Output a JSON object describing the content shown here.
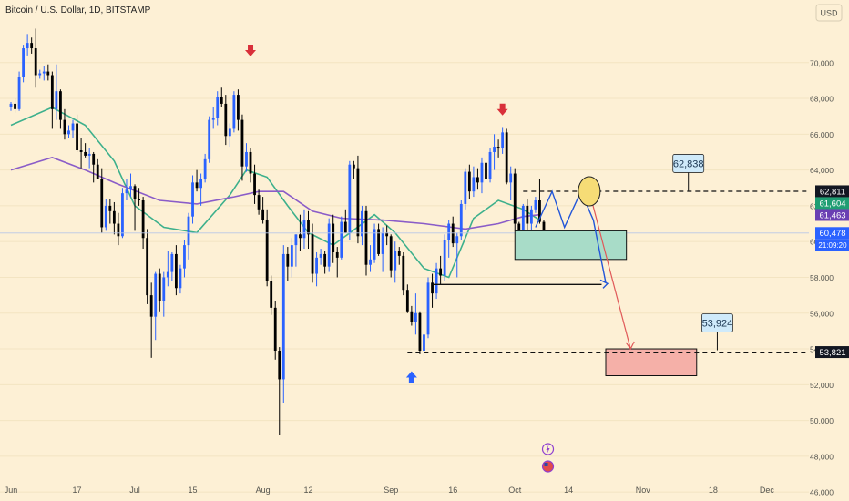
{
  "chart_data": {
    "type": "candlestick",
    "title": "Bitcoin / U.S. Dollar, 1D, BITSTAMP",
    "currency": "USD",
    "ylim": [
      45500,
      73500
    ],
    "y_ticks": [
      46000,
      48000,
      50000,
      52000,
      54000,
      56000,
      58000,
      60000,
      62000,
      64000,
      66000,
      68000,
      70000
    ],
    "y_tick_labels": [
      "46,000",
      "48,000",
      "50,000",
      "52,000",
      "54,000",
      "56,000",
      "58,000",
      "60,000",
      "62,000",
      "64,000",
      "66,000",
      "68,000",
      "70,000"
    ],
    "x_start_date": "2024-06-01",
    "x_end_date": "2024-12-05",
    "x_ticks": [
      {
        "date": "2024-06-01",
        "label": "Jun"
      },
      {
        "date": "2024-06-17",
        "label": "17"
      },
      {
        "date": "2024-07-01",
        "label": "Jul"
      },
      {
        "date": "2024-07-15",
        "label": "15"
      },
      {
        "date": "2024-08-01",
        "label": "Aug"
      },
      {
        "date": "2024-08-12",
        "label": "12"
      },
      {
        "date": "2024-09-01",
        "label": "Sep"
      },
      {
        "date": "2024-09-16",
        "label": "16"
      },
      {
        "date": "2024-10-01",
        "label": "Oct"
      },
      {
        "date": "2024-10-14",
        "label": "14"
      },
      {
        "date": "2024-11-01",
        "label": "Nov"
      },
      {
        "date": "2024-11-18",
        "label": "18"
      },
      {
        "date": "2024-12-01",
        "label": "Dec"
      }
    ],
    "ohlc_start_date": "2024-06-01",
    "ohlc": [
      [
        67500,
        67800,
        67300,
        67700
      ],
      [
        67700,
        68000,
        67200,
        67400
      ],
      [
        67400,
        69500,
        67300,
        69200
      ],
      [
        69200,
        71000,
        68900,
        70800
      ],
      [
        70800,
        71600,
        70400,
        71100
      ],
      [
        71100,
        71400,
        70500,
        70800
      ],
      [
        70800,
        71900,
        68600,
        69300
      ],
      [
        69300,
        69600,
        69100,
        69400
      ],
      [
        69400,
        69800,
        69000,
        69500
      ],
      [
        69500,
        69900,
        69000,
        69300
      ],
      [
        69300,
        69500,
        66300,
        67400
      ],
      [
        67400,
        69900,
        66800,
        68400
      ],
      [
        68400,
        68500,
        66300,
        66800
      ],
      [
        66800,
        67400,
        65700,
        66000
      ],
      [
        66000,
        66500,
        65800,
        66200
      ],
      [
        66200,
        66800,
        65800,
        66600
      ],
      [
        66600,
        67100,
        65000,
        65100
      ],
      [
        65100,
        65800,
        64100,
        65000
      ],
      [
        65000,
        65500,
        64700,
        64800
      ],
      [
        64800,
        65200,
        64100,
        64900
      ],
      [
        64900,
        65000,
        63300,
        64300
      ],
      [
        64300,
        64600,
        63500,
        63500
      ],
      [
        63500,
        64100,
        60500,
        60800
      ],
      [
        60800,
        62400,
        60600,
        62000
      ],
      [
        62000,
        62400,
        61000,
        61700
      ],
      [
        61700,
        62200,
        60400,
        61000
      ],
      [
        61000,
        61600,
        59800,
        60300
      ],
      [
        60300,
        63000,
        60200,
        62700
      ],
      [
        62700,
        63500,
        62300,
        62900
      ],
      [
        62900,
        63800,
        62500,
        63100
      ],
      [
        63100,
        63200,
        60600,
        62400
      ],
      [
        62400,
        63000,
        62000,
        62300
      ],
      [
        62300,
        62500,
        59600,
        60200
      ],
      [
        60200,
        60700,
        56500,
        57000
      ],
      [
        57000,
        57700,
        53500,
        55800
      ],
      [
        55800,
        58300,
        54500,
        58200
      ],
      [
        58200,
        58500,
        56100,
        56700
      ],
      [
        56700,
        58300,
        55800,
        58000
      ],
      [
        58000,
        59500,
        57500,
        58300
      ],
      [
        58300,
        59400,
        57800,
        59300
      ],
      [
        59300,
        59800,
        57000,
        57400
      ],
      [
        57400,
        58700,
        57100,
        58500
      ],
      [
        58500,
        60100,
        58000,
        59800
      ],
      [
        59800,
        61600,
        59000,
        61400
      ],
      [
        61400,
        63700,
        61000,
        63300
      ],
      [
        63300,
        64000,
        62800,
        63000
      ],
      [
        63000,
        63800,
        62000,
        63500
      ],
      [
        63500,
        64900,
        63300,
        64600
      ],
      [
        64600,
        67000,
        64400,
        66800
      ],
      [
        66800,
        67500,
        66300,
        66900
      ],
      [
        66900,
        68400,
        66500,
        68100
      ],
      [
        68100,
        68600,
        67500,
        67700
      ],
      [
        67700,
        68200,
        65400,
        65900
      ],
      [
        65900,
        66600,
        65300,
        66300
      ],
      [
        66300,
        68400,
        66100,
        68200
      ],
      [
        68200,
        68500,
        66200,
        66800
      ],
      [
        66800,
        67100,
        63400,
        64200
      ],
      [
        64200,
        65500,
        63900,
        65000
      ],
      [
        65000,
        65200,
        63300,
        63800
      ],
      [
        63800,
        64300,
        62100,
        62600
      ],
      [
        62600,
        62900,
        61500,
        61800
      ],
      [
        61800,
        62500,
        61000,
        61200
      ],
      [
        61200,
        61800,
        57500,
        57800
      ],
      [
        57800,
        58100,
        55900,
        56300
      ],
      [
        56300,
        56700,
        53400,
        53900
      ],
      [
        53900,
        54100,
        49200,
        52300
      ],
      [
        52300,
        59800,
        51000,
        59300
      ],
      [
        59300,
        59700,
        57800,
        58600
      ],
      [
        58600,
        60200,
        58000,
        59800
      ],
      [
        59800,
        60400,
        58600,
        60400
      ],
      [
        60400,
        61500,
        59500,
        60200
      ],
      [
        60200,
        61800,
        59600,
        61200
      ],
      [
        61200,
        61700,
        59600,
        60400
      ],
      [
        60400,
        61000,
        57700,
        58200
      ],
      [
        58200,
        59400,
        57500,
        59100
      ],
      [
        59100,
        59600,
        58700,
        59300
      ],
      [
        59300,
        59500,
        58200,
        58600
      ],
      [
        58600,
        61300,
        58300,
        61000
      ],
      [
        61000,
        61500,
        58800,
        59400
      ],
      [
        59400,
        59700,
        58000,
        59100
      ],
      [
        59100,
        61400,
        59000,
        61100
      ],
      [
        61100,
        61800,
        60500,
        60500
      ],
      [
        60500,
        64500,
        60100,
        64300
      ],
      [
        64300,
        64500,
        63500,
        64100
      ],
      [
        64100,
        64800,
        59900,
        60300
      ],
      [
        60300,
        62000,
        59800,
        61700
      ],
      [
        61700,
        62000,
        58100,
        58700
      ],
      [
        58700,
        59800,
        58300,
        59000
      ],
      [
        59000,
        61000,
        58800,
        60700
      ],
      [
        60700,
        61000,
        59200,
        59300
      ],
      [
        59300,
        60800,
        58300,
        60500
      ],
      [
        60500,
        60900,
        59800,
        60300
      ],
      [
        60300,
        60400,
        58000,
        58400
      ],
      [
        58400,
        60000,
        57700,
        59500
      ],
      [
        59500,
        59700,
        58700,
        59200
      ],
      [
        59200,
        59400,
        57000,
        57300
      ],
      [
        57300,
        57600,
        56000,
        56100
      ],
      [
        56100,
        56400,
        55300,
        55500
      ],
      [
        55500,
        57100,
        54800,
        56000
      ],
      [
        56000,
        56100,
        53700,
        53900
      ],
      [
        53900,
        54900,
        53600,
        54800
      ],
      [
        54800,
        58000,
        54600,
        57700
      ],
      [
        57700,
        58200,
        56300,
        57100
      ],
      [
        57100,
        58800,
        56800,
        58500
      ],
      [
        58500,
        59200,
        57600,
        58100
      ],
      [
        58100,
        60400,
        57800,
        60100
      ],
      [
        60100,
        61200,
        59100,
        61000
      ],
      [
        61000,
        61400,
        59700,
        59900
      ],
      [
        59900,
        60500,
        58000,
        60300
      ],
      [
        60300,
        62300,
        60100,
        62100
      ],
      [
        62100,
        64100,
        61800,
        63900
      ],
      [
        63900,
        64300,
        62400,
        62800
      ],
      [
        62800,
        64200,
        62500,
        63600
      ],
      [
        63600,
        64100,
        62900,
        63300
      ],
      [
        63300,
        64700,
        62700,
        64400
      ],
      [
        64400,
        64600,
        63100,
        63500
      ],
      [
        63500,
        65200,
        63300,
        65000
      ],
      [
        65000,
        66000,
        64000,
        65300
      ],
      [
        65300,
        65700,
        64700,
        65200
      ],
      [
        65200,
        66400,
        64900,
        66100
      ],
      [
        66100,
        66300,
        63200,
        63300
      ],
      [
        63300,
        64200,
        62300,
        63800
      ],
      [
        63800,
        64100,
        60600,
        61000
      ],
      [
        61000,
        61100,
        60200,
        60600
      ],
      [
        60600,
        62100,
        60300,
        62000
      ],
      [
        62000,
        62400,
        60200,
        61000
      ],
      [
        61000,
        62000,
        60500,
        61800
      ],
      [
        61800,
        62500,
        61600,
        62300
      ],
      [
        62300,
        63500,
        61000,
        61100
      ],
      [
        61100,
        61200,
        60200,
        60500
      ]
    ],
    "ma_series": [
      {
        "color": "#3db08c",
        "points": [
          [
            0,
            66500
          ],
          [
            10,
            67500
          ],
          [
            18,
            66500
          ],
          [
            25,
            64500
          ],
          [
            30,
            62000
          ],
          [
            37,
            60800
          ],
          [
            45,
            60500
          ],
          [
            53,
            62600
          ],
          [
            57,
            64000
          ],
          [
            62,
            63600
          ],
          [
            67,
            62000
          ],
          [
            72,
            60500
          ],
          [
            78,
            59800
          ],
          [
            88,
            61500
          ],
          [
            93,
            60500
          ],
          [
            100,
            58500
          ],
          [
            106,
            58000
          ],
          [
            112,
            61300
          ],
          [
            118,
            62300
          ],
          [
            124,
            61800
          ],
          [
            128,
            61200
          ]
        ]
      },
      {
        "color": "#8a5cc8",
        "points": [
          [
            0,
            64000
          ],
          [
            10,
            64700
          ],
          [
            18,
            64000
          ],
          [
            26,
            63200
          ],
          [
            36,
            62300
          ],
          [
            45,
            62100
          ],
          [
            54,
            62500
          ],
          [
            60,
            62800
          ],
          [
            66,
            62800
          ],
          [
            73,
            61700
          ],
          [
            80,
            61300
          ],
          [
            90,
            61200
          ],
          [
            100,
            61000
          ],
          [
            110,
            60700
          ],
          [
            118,
            61000
          ],
          [
            124,
            61400
          ],
          [
            128,
            61500
          ]
        ]
      }
    ],
    "price_tags": [
      {
        "label": "62,811",
        "value": 62811,
        "color": "#131722"
      },
      {
        "label": "61,604",
        "value": 61604,
        "color": "#1f9e73"
      },
      {
        "label": "61,463",
        "value": 61463,
        "color": "#6a3fb3"
      },
      {
        "label": "60,478",
        "value": 60478,
        "color": "#2a62ff"
      },
      {
        "label": "21:09:20",
        "color": "#2a62ff"
      },
      {
        "label": "53,821",
        "value": 53821,
        "color": "#131722"
      }
    ],
    "callouts": [
      {
        "label": "62,838",
        "value": 62838
      },
      {
        "label": "53,924",
        "value": 53924
      }
    ],
    "zones": [
      {
        "name": "support-zone",
        "from_day": 122,
        "to_day": 149,
        "low": 59000,
        "high": 60600,
        "color": "#a8dcc8"
      },
      {
        "name": "target-zone",
        "from_day": 144,
        "to_day": 166,
        "low": 52500,
        "high": 54000,
        "color": "#f5b0a8"
      }
    ],
    "resistance_level": 62811,
    "low_level": 53821
  },
  "annotations": {
    "marker_icons": [
      "lightning-icon",
      "us-flag-icon"
    ]
  }
}
